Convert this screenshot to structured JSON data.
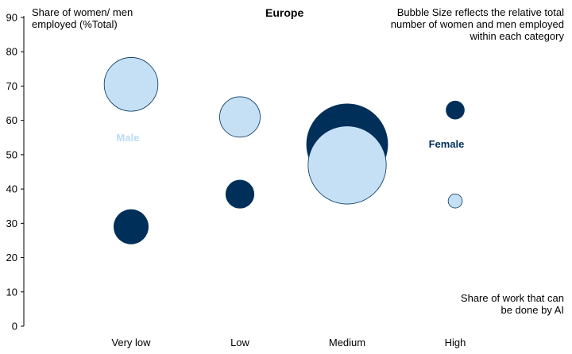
{
  "chart_data": {
    "type": "scatter",
    "title": "Europe",
    "ylabel_lines": [
      "Share of women/ men",
      "employed (%Total)"
    ],
    "xlabel_lines": [
      "Share of work that can",
      "be done by AI"
    ],
    "note_lines": [
      "Bubble Size  reflects the relative total",
      "number of women and men employed",
      "within each category"
    ],
    "categories": [
      "Very low",
      "Low",
      "Medium",
      "High"
    ],
    "y_ticks": [
      0,
      10,
      20,
      30,
      40,
      50,
      60,
      70,
      80,
      90
    ],
    "ylim": [
      0,
      90
    ],
    "legend": "inline",
    "series": [
      {
        "name": "Male",
        "color": "#c5e0f5",
        "label_color": "#bcdcf5",
        "points": [
          {
            "category": "Very low",
            "y": 70.5,
            "size": 0.44
          },
          {
            "category": "Low",
            "y": 61,
            "size": 0.25
          },
          {
            "category": "Medium",
            "y": 47,
            "size": 0.93
          },
          {
            "category": "High",
            "y": 36.5,
            "size": 0.03
          }
        ]
      },
      {
        "name": "Female",
        "color": "#00305a",
        "label_color": "#00305a",
        "points": [
          {
            "category": "Very low",
            "y": 29,
            "size": 0.18
          },
          {
            "category": "Low",
            "y": 38.5,
            "size": 0.12
          },
          {
            "category": "Medium",
            "y": 53,
            "size": 1.0
          },
          {
            "category": "High",
            "y": 63,
            "size": 0.05
          }
        ]
      }
    ]
  }
}
